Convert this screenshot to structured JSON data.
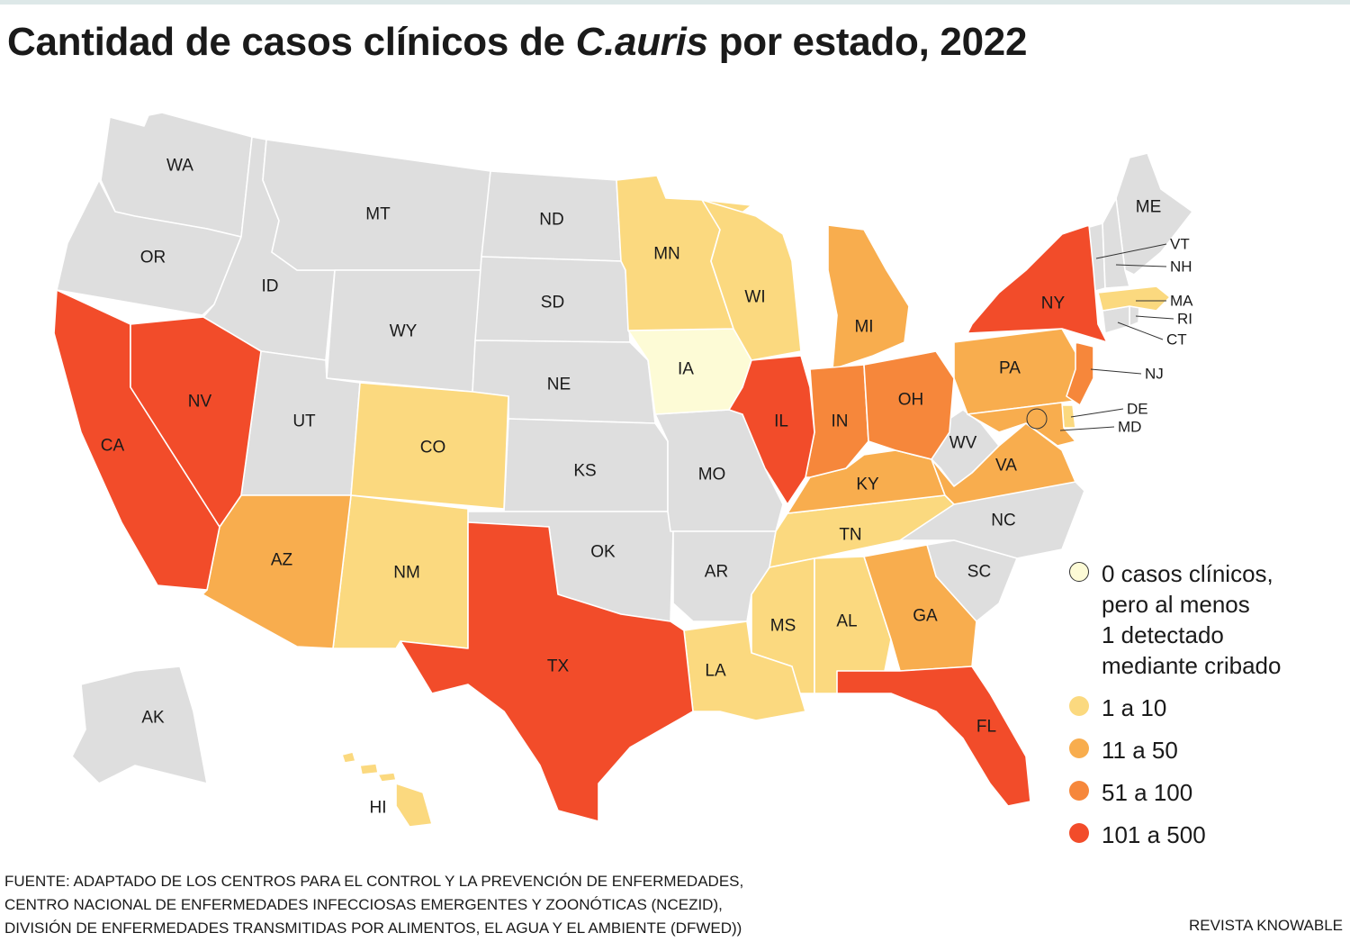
{
  "title": {
    "prefix": "Cantidad de casos clínicos de ",
    "italic": "C.auris",
    "suffix": " por estado, 2022"
  },
  "legend": [
    {
      "key": "0",
      "label": "0 casos clínicos,\npero al menos\n1 detectado\nmediante cribado",
      "color": "#fdfbd6"
    },
    {
      "key": "1-10",
      "label": "1 a 10",
      "color": "#fbd97f"
    },
    {
      "key": "11-50",
      "label": "11 a 50",
      "color": "#f8ad4e"
    },
    {
      "key": "51-100",
      "label": "51 a 100",
      "color": "#f6873b"
    },
    {
      "key": "101-500",
      "label": "101 a 500",
      "color": "#f24c2a"
    }
  ],
  "no_data_color": "#dedede",
  "states": [
    {
      "abbr": "WA",
      "category": "none"
    },
    {
      "abbr": "OR",
      "category": "none"
    },
    {
      "abbr": "ID",
      "category": "none"
    },
    {
      "abbr": "MT",
      "category": "none"
    },
    {
      "abbr": "WY",
      "category": "none"
    },
    {
      "abbr": "UT",
      "category": "none"
    },
    {
      "abbr": "ND",
      "category": "none"
    },
    {
      "abbr": "SD",
      "category": "none"
    },
    {
      "abbr": "NE",
      "category": "none"
    },
    {
      "abbr": "KS",
      "category": "none"
    },
    {
      "abbr": "OK",
      "category": "none"
    },
    {
      "abbr": "MO",
      "category": "none"
    },
    {
      "abbr": "AR",
      "category": "none"
    },
    {
      "abbr": "WV",
      "category": "none"
    },
    {
      "abbr": "NC",
      "category": "none"
    },
    {
      "abbr": "SC",
      "category": "none"
    },
    {
      "abbr": "ME",
      "category": "none"
    },
    {
      "abbr": "VT",
      "category": "none"
    },
    {
      "abbr": "NH",
      "category": "none"
    },
    {
      "abbr": "RI",
      "category": "none"
    },
    {
      "abbr": "CT",
      "category": "none"
    },
    {
      "abbr": "AK",
      "category": "none"
    },
    {
      "abbr": "IA",
      "category": "0"
    },
    {
      "abbr": "MN",
      "category": "1-10"
    },
    {
      "abbr": "WI",
      "category": "1-10"
    },
    {
      "abbr": "CO",
      "category": "1-10"
    },
    {
      "abbr": "NM",
      "category": "1-10"
    },
    {
      "abbr": "TN",
      "category": "1-10"
    },
    {
      "abbr": "MS",
      "category": "1-10"
    },
    {
      "abbr": "AL",
      "category": "1-10"
    },
    {
      "abbr": "LA",
      "category": "1-10"
    },
    {
      "abbr": "MA",
      "category": "1-10"
    },
    {
      "abbr": "DE",
      "category": "1-10"
    },
    {
      "abbr": "HI",
      "category": "1-10"
    },
    {
      "abbr": "AZ",
      "category": "11-50"
    },
    {
      "abbr": "MI",
      "category": "11-50"
    },
    {
      "abbr": "PA",
      "category": "11-50"
    },
    {
      "abbr": "KY",
      "category": "11-50"
    },
    {
      "abbr": "VA",
      "category": "11-50"
    },
    {
      "abbr": "GA",
      "category": "11-50"
    },
    {
      "abbr": "MD",
      "category": "11-50"
    },
    {
      "abbr": "IN",
      "category": "51-100"
    },
    {
      "abbr": "OH",
      "category": "51-100"
    },
    {
      "abbr": "NJ",
      "category": "51-100"
    },
    {
      "abbr": "CA",
      "category": "101-500"
    },
    {
      "abbr": "NV",
      "category": "101-500"
    },
    {
      "abbr": "TX",
      "category": "101-500"
    },
    {
      "abbr": "IL",
      "category": "101-500"
    },
    {
      "abbr": "NY",
      "category": "101-500"
    },
    {
      "abbr": "FL",
      "category": "101-500"
    }
  ],
  "source": "FUENTE: ADAPTADO DE LOS CENTROS PARA EL CONTROL Y LA PREVENCIÓN DE ENFERMEDADES,\nCENTRO NACIONAL DE ENFERMEDADES INFECCIOSAS EMERGENTES Y ZOONÓTICAS (NCEZID),\nDIVISIÓN DE ENFERMEDADES TRANSMITIDAS POR ALIMENTOS, EL AGUA Y EL AMBIENTE (DFWED))",
  "credit": "REVISTA KNOWABLE"
}
